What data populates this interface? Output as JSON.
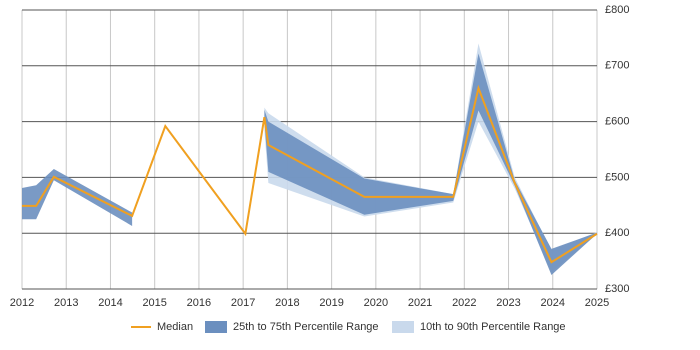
{
  "chart_data": {
    "type": "line-band",
    "x": [
      2012,
      2012.32,
      2012.72,
      2014.49,
      2015.24,
      2017.05,
      2017.48,
      2017.57,
      2019.74,
      2021.75,
      2022.32,
      2023.14,
      2023.97,
      2025
    ],
    "series": [
      {
        "name": "Median",
        "color": "#f0a020",
        "values": [
          449,
          449,
          501,
          431,
          592,
          399,
          608,
          558,
          465,
          465,
          660,
          490,
          348,
          399
        ]
      },
      {
        "name": "25th to 75th Percentile Range",
        "color": "#6b8fbf",
        "low": [
          425,
          425,
          495,
          413,
          null,
          null,
          600,
          510,
          433,
          458,
          620,
          485,
          325,
          399
        ],
        "high": [
          481,
          486,
          515,
          437,
          null,
          null,
          621,
          600,
          498,
          470,
          722,
          495,
          372,
          401
        ]
      },
      {
        "name": "10th to 90th Percentile Range",
        "color": "#c9d9ec",
        "low": [
          null,
          null,
          null,
          null,
          null,
          null,
          585,
          490,
          430,
          455,
          600,
          480,
          330,
          398
        ],
        "high": [
          null,
          null,
          null,
          null,
          null,
          null,
          625,
          615,
          500,
          470,
          740,
          500,
          370,
          402
        ]
      }
    ],
    "xlim": [
      2012,
      2025
    ],
    "xticks": [
      2012,
      2013,
      2014,
      2015,
      2016,
      2017,
      2018,
      2019,
      2020,
      2021,
      2022,
      2023,
      2024,
      2025
    ],
    "ylim": [
      300,
      800
    ],
    "yticks": [
      {
        "value": 300,
        "label": "£300"
      },
      {
        "value": 400,
        "label": "£400"
      },
      {
        "value": 500,
        "label": "£500"
      },
      {
        "value": 600,
        "label": "£600"
      },
      {
        "value": 700,
        "label": "£700"
      },
      {
        "value": 800,
        "label": "£800"
      }
    ],
    "grid": true,
    "legend": "bottom"
  }
}
